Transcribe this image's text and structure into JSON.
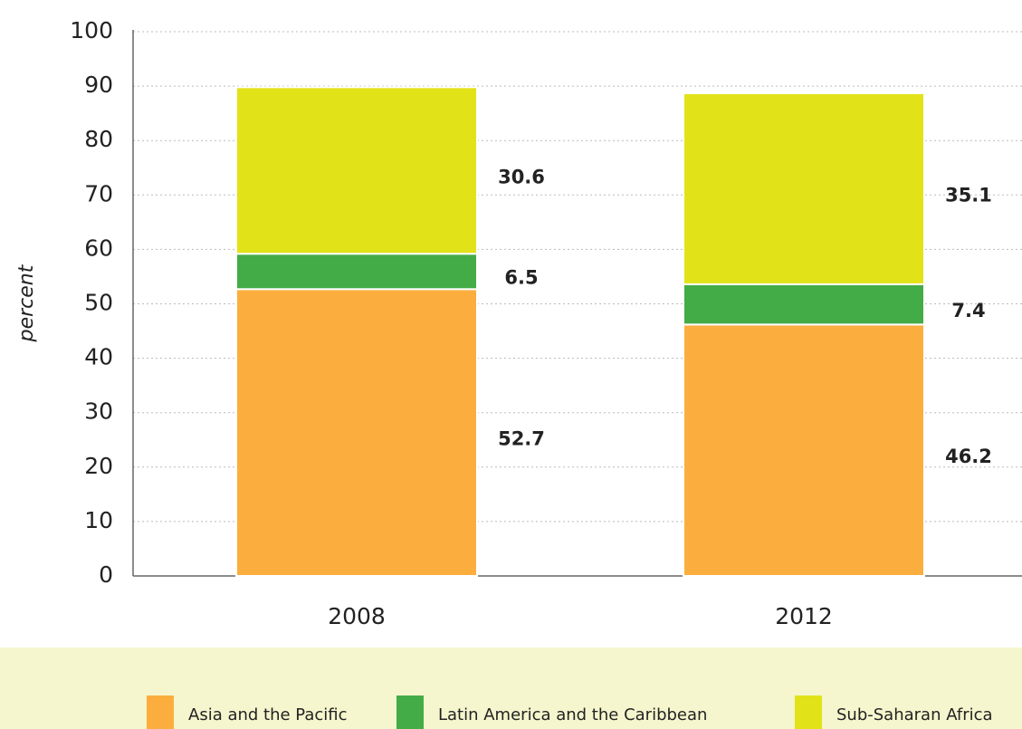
{
  "chart_data": {
    "type": "stacked_bar",
    "y_label": "percent",
    "categories": [
      "2008",
      "2012"
    ],
    "series": [
      {
        "name": "Asia and the Pacific",
        "color": "#fbae3e",
        "values": [
          52.7,
          46.2
        ]
      },
      {
        "name": "Latin America and the Caribbean",
        "color": "#43ac46",
        "values": [
          6.5,
          7.4
        ]
      },
      {
        "name": "Sub-Saharan Africa",
        "color": "#e2e219",
        "values": [
          30.6,
          35.1
        ]
      }
    ],
    "ylim": [
      0,
      100
    ],
    "yticks": [
      0,
      10,
      20,
      30,
      40,
      50,
      60,
      70,
      80,
      90,
      100
    ],
    "grid": true,
    "legend": "bottom"
  }
}
